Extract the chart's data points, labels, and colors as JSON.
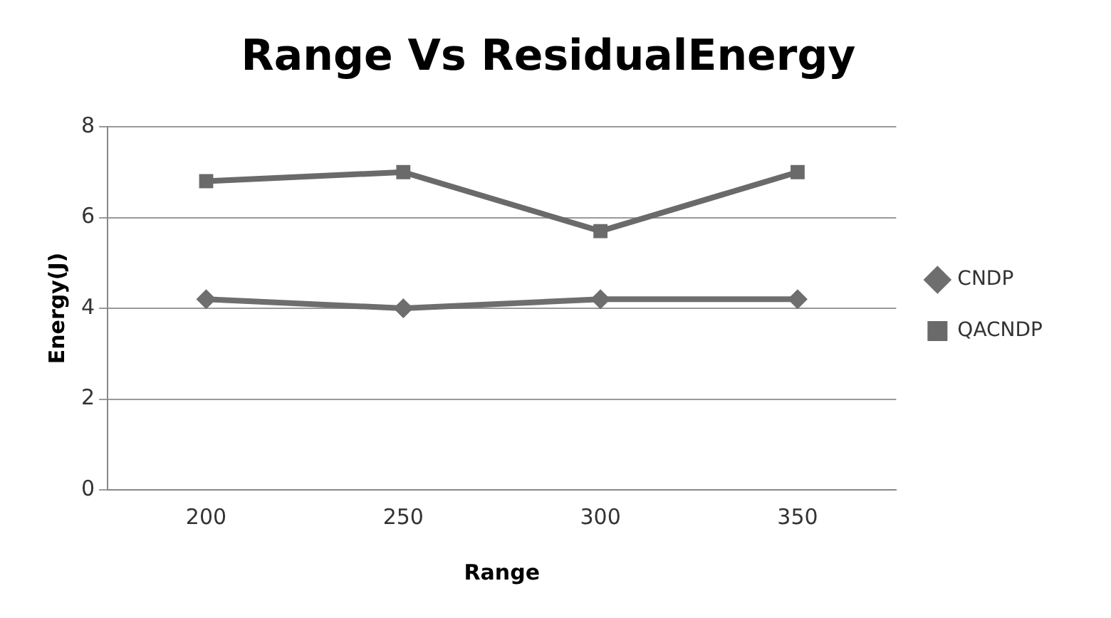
{
  "chart_data": {
    "type": "line",
    "title": "Range Vs ResidualEnergy",
    "xlabel": "Range",
    "ylabel": "Energy(J)",
    "categories": [
      "200",
      "250",
      "300",
      "350"
    ],
    "series": [
      {
        "name": "CNDP",
        "color": "#6e6e6e",
        "values": [
          4.2,
          4.0,
          4.2,
          4.2
        ],
        "marker": "diamond"
      },
      {
        "name": "QACNDP",
        "color": "#6a6a6a",
        "values": [
          6.8,
          7.0,
          5.7,
          7.0
        ],
        "marker": "square"
      }
    ],
    "ylim": [
      0,
      8
    ],
    "yticks": [
      0,
      2,
      4,
      6,
      8
    ],
    "grid": "y",
    "legend": "right"
  }
}
